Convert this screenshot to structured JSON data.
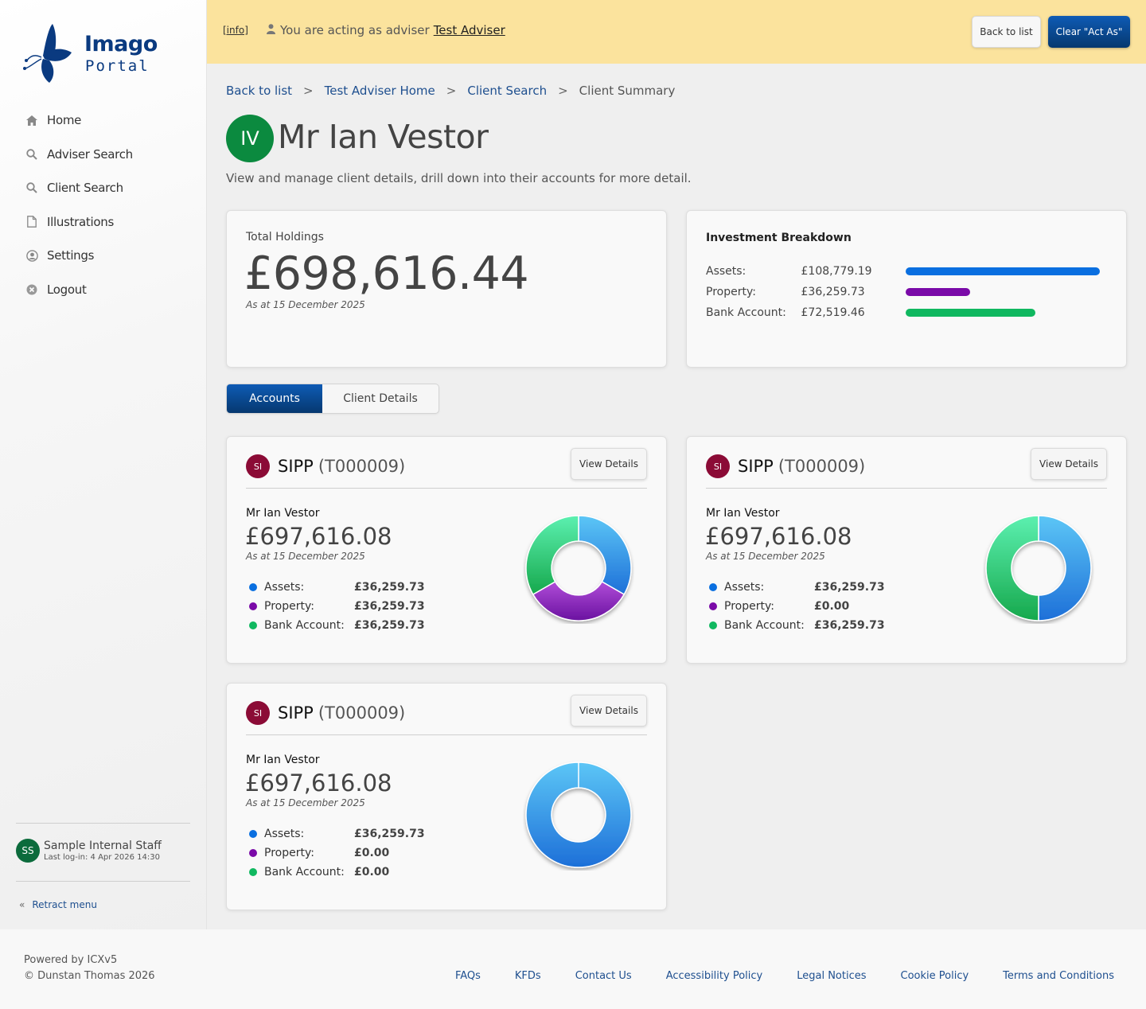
{
  "brand": {
    "name": "Imago",
    "sub": "Portal"
  },
  "sidebar": {
    "items": [
      {
        "label": "Home",
        "icon": "home-icon"
      },
      {
        "label": "Adviser Search",
        "icon": "search-icon"
      },
      {
        "label": "Client Search",
        "icon": "search-icon"
      },
      {
        "label": "Illustrations",
        "icon": "document-icon"
      },
      {
        "label": "Settings",
        "icon": "user-circle-icon"
      },
      {
        "label": "Logout",
        "icon": "close-circle-icon"
      }
    ],
    "user": {
      "initials": "SS",
      "name": "Sample Internal Staff",
      "last_login": "Last log-in: 4 Apr 2026 14:30"
    },
    "retract_label": "Retract menu"
  },
  "banner": {
    "info_label": "[info]",
    "acting_text": "You are acting as adviser",
    "adviser_name": "Test Adviser",
    "back_label": "Back to list",
    "clear_label": "Clear \"Act As\""
  },
  "breadcrumb": {
    "items": [
      "Back to list",
      "Test Adviser Home",
      "Client Search"
    ],
    "current": "Client Summary",
    "separator": ">"
  },
  "client": {
    "initials": "IV",
    "name": "Mr Ian Vestor",
    "subtitle": "View and manage client details, drill down into their accounts for more detail."
  },
  "total": {
    "label": "Total Holdings",
    "value": "£698,616.44",
    "date": "As at 15 December 2025"
  },
  "breakdown": {
    "title": "Investment Breakdown",
    "rows": [
      {
        "name": "Assets:",
        "value": "£108,779.19",
        "fraction": 1.0,
        "color": "#0a6fe0"
      },
      {
        "name": "Property:",
        "value": "£36,259.73",
        "fraction": 0.333,
        "color": "#7a0aa8"
      },
      {
        "name": "Bank Account:",
        "value": "£72,519.46",
        "fraction": 0.667,
        "color": "#10b860"
      }
    ]
  },
  "tabs": {
    "accounts": "Accounts",
    "client_details": "Client Details"
  },
  "accounts": [
    {
      "badge": "SI",
      "type": "SIPP",
      "code": "(T000009)",
      "view_label": "View Details",
      "holder": "Mr Ian Vestor",
      "value": "£697,616.08",
      "date": "As at 15 December 2025",
      "rows": [
        {
          "name": "Assets:",
          "value": "£36,259.73"
        },
        {
          "name": "Property:",
          "value": "£36,259.73"
        },
        {
          "name": "Bank Account:",
          "value": "£36,259.73"
        }
      ]
    },
    {
      "badge": "SI",
      "type": "SIPP",
      "code": "(T000009)",
      "view_label": "View Details",
      "holder": "Mr Ian Vestor",
      "value": "£697,616.08",
      "date": "As at 15 December 2025",
      "rows": [
        {
          "name": "Assets:",
          "value": "£36,259.73"
        },
        {
          "name": "Property:",
          "value": "£0.00"
        },
        {
          "name": "Bank Account:",
          "value": "£36,259.73"
        }
      ]
    },
    {
      "badge": "SI",
      "type": "SIPP",
      "code": "(T000009)",
      "view_label": "View Details",
      "holder": "Mr Ian Vestor",
      "value": "£697,616.08",
      "date": "As at 15 December 2025",
      "rows": [
        {
          "name": "Assets:",
          "value": "£36,259.73"
        },
        {
          "name": "Property:",
          "value": "£0.00"
        },
        {
          "name": "Bank Account:",
          "value": "£0.00"
        }
      ]
    }
  ],
  "colors": {
    "assets": "#0a6fe0",
    "property": "#7a0aa8",
    "bank": "#10b860",
    "brand_dark": "#06386f"
  },
  "footer": {
    "powered": "Powered by ICXv5",
    "copyright": "© Dunstan Thomas 2026",
    "links": [
      "FAQs",
      "KFDs",
      "Contact Us",
      "Accessibility Policy",
      "Legal Notices",
      "Cookie Policy",
      "Terms and Conditions"
    ]
  }
}
